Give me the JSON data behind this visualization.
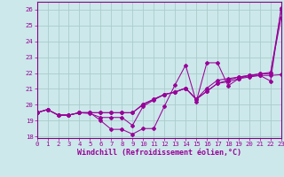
{
  "xlabel": "Windchill (Refroidissement éolien,°C)",
  "background_color": "#cce8ea",
  "grid_color": "#aacccc",
  "line_color": "#990099",
  "spine_color": "#880088",
  "x_values": [
    0,
    1,
    2,
    3,
    4,
    5,
    6,
    7,
    8,
    9,
    10,
    11,
    12,
    13,
    14,
    15,
    16,
    17,
    18,
    19,
    20,
    21,
    22,
    23
  ],
  "series1": [
    19.5,
    19.7,
    19.35,
    19.35,
    19.5,
    19.5,
    19.0,
    18.45,
    18.45,
    18.15,
    18.5,
    18.5,
    19.9,
    21.25,
    22.5,
    20.2,
    22.65,
    22.65,
    21.2,
    21.65,
    21.85,
    21.85,
    21.5,
    26.1
  ],
  "series2": [
    19.5,
    19.7,
    19.35,
    19.35,
    19.5,
    19.45,
    19.2,
    19.2,
    19.2,
    18.7,
    19.9,
    20.3,
    20.65,
    20.8,
    21.05,
    20.35,
    20.85,
    21.35,
    21.45,
    21.65,
    21.75,
    21.85,
    21.85,
    21.9
  ],
  "series3": [
    19.5,
    19.7,
    19.35,
    19.35,
    19.5,
    19.5,
    19.5,
    19.5,
    19.5,
    19.5,
    20.05,
    20.35,
    20.65,
    20.8,
    21.05,
    20.35,
    21.05,
    21.55,
    21.65,
    21.75,
    21.85,
    21.95,
    22.05,
    25.5
  ],
  "series4": [
    19.5,
    19.7,
    19.35,
    19.35,
    19.5,
    19.5,
    19.5,
    19.5,
    19.5,
    19.5,
    20.0,
    20.35,
    20.65,
    20.8,
    21.05,
    20.35,
    20.85,
    21.35,
    21.55,
    21.75,
    21.85,
    21.95,
    21.95,
    26.0
  ],
  "ylim": [
    17.9,
    26.5
  ],
  "xlim": [
    0,
    23
  ],
  "yticks": [
    18,
    19,
    20,
    21,
    22,
    23,
    24,
    25,
    26
  ],
  "xticks": [
    0,
    1,
    2,
    3,
    4,
    5,
    6,
    7,
    8,
    9,
    10,
    11,
    12,
    13,
    14,
    15,
    16,
    17,
    18,
    19,
    20,
    21,
    22,
    23
  ],
  "tick_fontsize": 5.2,
  "xlabel_fontsize": 6.0
}
